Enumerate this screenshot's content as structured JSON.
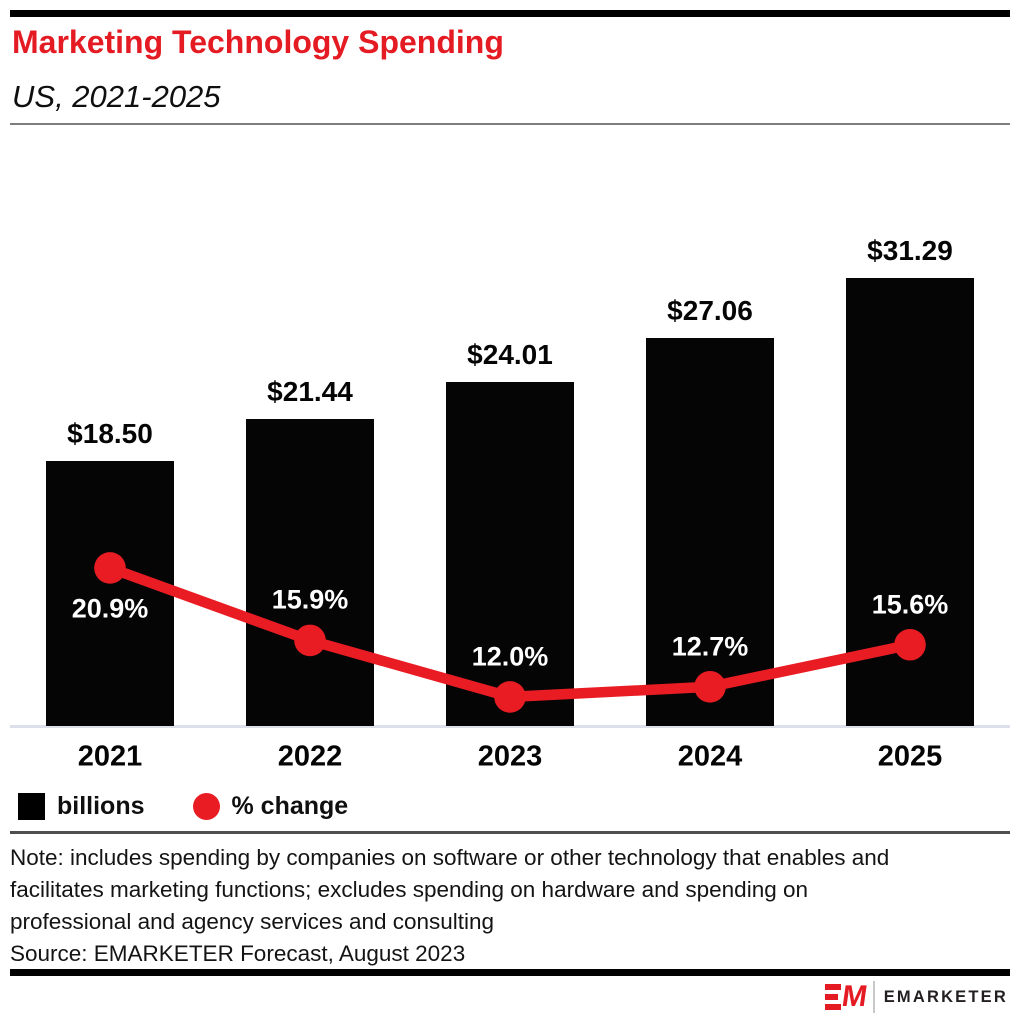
{
  "header": {
    "title": "Marketing Technology Spending",
    "subtitle": "US, 2021-2025"
  },
  "chart_data": {
    "type": "bar",
    "title": "Marketing Technology Spending",
    "subtitle": "US, 2021-2025",
    "categories": [
      "2021",
      "2022",
      "2023",
      "2024",
      "2025"
    ],
    "series": [
      {
        "name": "billions",
        "type": "bar",
        "values": [
          18.5,
          21.44,
          24.01,
          27.06,
          31.29
        ],
        "labels": [
          "$18.50",
          "$21.44",
          "$24.01",
          "$27.06",
          "$31.29"
        ],
        "color": "#050505"
      },
      {
        "name": "% change",
        "type": "line",
        "values": [
          20.9,
          15.9,
          12.0,
          12.7,
          15.6
        ],
        "labels": [
          "20.9%",
          "15.9%",
          "12.0%",
          "12.7%",
          "15.6%"
        ],
        "color": "#e91c23",
        "label_sides": [
          "below",
          "above",
          "above",
          "above",
          "above"
        ]
      }
    ],
    "legend": [
      {
        "label": "billions",
        "swatch": "square",
        "color": "#050505"
      },
      {
        "label": "% change",
        "swatch": "circle",
        "color": "#e91c23"
      }
    ],
    "legend_position": "bottom-left",
    "grid": false,
    "accent_color": "#e41b23"
  },
  "notes": {
    "lines": [
      "Note: includes spending by companies on software or other technology that enables and",
      "facilitates marketing functions; excludes spending on hardware and spending on",
      "professional and agency services and consulting"
    ],
    "source": "Source: EMARKETER Forecast, August 2023"
  },
  "footer": {
    "brand": "EMARKETER"
  }
}
